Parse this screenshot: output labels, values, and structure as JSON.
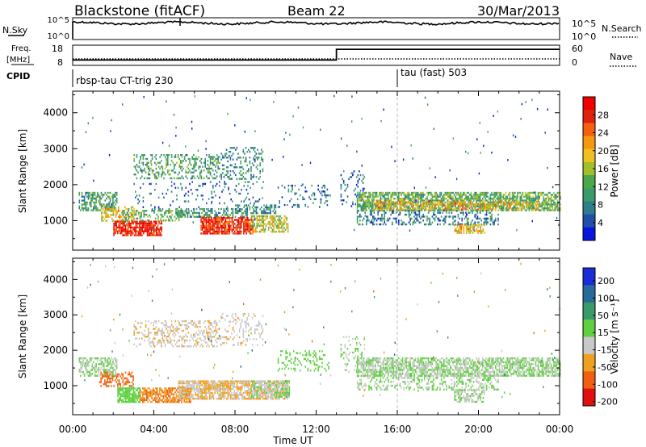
{
  "header": {
    "station": "Blackstone (fitACF)",
    "beam": "Beam 22",
    "date": "30/Mar/2013"
  },
  "nsky_panel": {
    "label": "N.Sky",
    "ticks_left": [
      "10^5",
      "10^0"
    ],
    "ticks_right": [
      "10^5",
      "10^0"
    ],
    "right_label": "N.Search"
  },
  "freq_panel": {
    "label_line1": "Freq.",
    "label_line2": "[MHz]",
    "ticks_left": [
      "18",
      "8"
    ],
    "ticks_right": [
      "60",
      "0"
    ],
    "right_label": "Nave",
    "cpid_label": "CPID",
    "freq_segments": [
      {
        "start_h": 0.0,
        "end_h": 13.0,
        "value": 10.2
      },
      {
        "start_h": 13.0,
        "end_h": 24.0,
        "value": 16.5
      }
    ]
  },
  "cpid": [
    {
      "start_h": 0.0,
      "name": "rbsp-tau CT-trig 230"
    },
    {
      "start_h": 16.0,
      "name": "tau (fast) 503"
    }
  ],
  "axes": {
    "ylabel": "Slant Range [km]",
    "yticks": [
      "1000",
      "2000",
      "3000",
      "4000"
    ],
    "xticks": [
      "00:00",
      "04:00",
      "08:00",
      "12:00",
      "16:00",
      "20:00",
      "00:00"
    ],
    "xlabel": "Time UT",
    "xlim_h": [
      0,
      24
    ],
    "ylim_km": [
      180,
      4600
    ]
  },
  "power_scale": {
    "title": "Power [dB]",
    "labels": [
      "4",
      "8",
      "12",
      "16",
      "20",
      "24",
      "28"
    ],
    "colors": [
      "#0a14e0",
      "#1f4fa8",
      "#2e7d88",
      "#3b9a6a",
      "#4aa84a",
      "#a0c02a",
      "#f0c020",
      "#f59a10",
      "#f26010",
      "#e02010",
      "#f00000"
    ]
  },
  "velocity_scale": {
    "title": "Velocity [m s⁻¹]",
    "labels": [
      "200",
      "100",
      "50",
      "15",
      "-15",
      "-50",
      "-100",
      "-200"
    ],
    "colors": [
      "#1a2cd8",
      "#2a6a9a",
      "#3a9a6a",
      "#60d040",
      "#c8c8c8",
      "#f0a020",
      "#f06010",
      "#e01010"
    ]
  },
  "chart_data": {
    "type": "heatmap",
    "title": "Blackstone (fitACF) Beam 22 30/Mar/2013",
    "xlabel": "Time UT",
    "ylabel": "Slant Range [km]",
    "xlim": [
      0,
      24
    ],
    "ylim": [
      180,
      4600
    ],
    "grid": false,
    "panels": [
      {
        "name": "Power",
        "units": "dB",
        "colorbar_range": [
          0,
          30
        ],
        "regions": [
          {
            "t0": 0.3,
            "t1": 2.2,
            "r0": 1300,
            "r1": 1800,
            "value": 10,
            "density": 0.55
          },
          {
            "t0": 1.4,
            "t1": 3.0,
            "r0": 1000,
            "r1": 1400,
            "value": 18,
            "density": 0.45
          },
          {
            "t0": 2.0,
            "t1": 4.4,
            "r0": 600,
            "r1": 1000,
            "value": 27,
            "density": 0.8
          },
          {
            "t0": 2.4,
            "t1": 5.5,
            "r0": 1000,
            "r1": 1300,
            "value": 12,
            "density": 0.4
          },
          {
            "t0": 3.0,
            "t1": 7.3,
            "r0": 2150,
            "r1": 2850,
            "value": 10,
            "density": 0.35
          },
          {
            "t0": 3.0,
            "t1": 9.4,
            "r0": 1300,
            "r1": 2100,
            "value": 6,
            "density": 0.08
          },
          {
            "t0": 5.0,
            "t1": 8.6,
            "r0": 1100,
            "r1": 1350,
            "value": 9,
            "density": 0.5
          },
          {
            "t0": 6.3,
            "t1": 8.9,
            "r0": 650,
            "r1": 1100,
            "value": 26,
            "density": 0.8
          },
          {
            "t0": 8.8,
            "t1": 10.6,
            "r0": 700,
            "r1": 1150,
            "value": 16,
            "density": 0.6
          },
          {
            "t0": 8.0,
            "t1": 10.0,
            "r0": 1200,
            "r1": 1450,
            "value": 8,
            "density": 0.35
          },
          {
            "t0": 7.3,
            "t1": 9.4,
            "r0": 2150,
            "r1": 3050,
            "value": 8,
            "density": 0.25
          },
          {
            "t0": 10.1,
            "t1": 12.6,
            "r0": 1400,
            "r1": 2000,
            "value": 6,
            "density": 0.2
          },
          {
            "t0": 13.2,
            "t1": 14.4,
            "r0": 1400,
            "r1": 2400,
            "value": 6,
            "density": 0.18
          },
          {
            "t0": 14.0,
            "t1": 24.0,
            "r0": 1300,
            "r1": 1800,
            "value": 12,
            "density": 0.7
          },
          {
            "t0": 14.8,
            "t1": 23.0,
            "r0": 1300,
            "r1": 1550,
            "value": 20,
            "density": 0.45
          },
          {
            "t0": 14.0,
            "t1": 21.0,
            "r0": 900,
            "r1": 1300,
            "value": 7,
            "density": 0.35
          },
          {
            "t0": 18.8,
            "t1": 20.3,
            "r0": 650,
            "r1": 900,
            "value": 18,
            "density": 0.6
          }
        ]
      },
      {
        "name": "Velocity",
        "units": "m s^-1",
        "colorbar_range": [
          -250,
          250
        ],
        "regions": [
          {
            "t0": 0.3,
            "t1": 2.2,
            "r0": 1300,
            "r1": 1800,
            "value": 0,
            "density": 0.6
          },
          {
            "t0": 1.3,
            "t1": 3.0,
            "r0": 1000,
            "r1": 1400,
            "value": -150,
            "density": 0.45
          },
          {
            "t0": 2.2,
            "t1": 3.3,
            "r0": 550,
            "r1": 950,
            "value": 30,
            "density": 0.8
          },
          {
            "t0": 3.3,
            "t1": 5.8,
            "r0": 550,
            "r1": 950,
            "value": -120,
            "density": 0.7
          },
          {
            "t0": 3.0,
            "t1": 7.3,
            "r0": 2100,
            "r1": 2850,
            "value": -50,
            "density": 0.3
          },
          {
            "t0": 5.2,
            "t1": 10.6,
            "r0": 650,
            "r1": 1150,
            "value": -60,
            "density": 0.75
          },
          {
            "t0": 8.8,
            "t1": 10.7,
            "r0": 700,
            "r1": 1150,
            "value": 0,
            "density": 0.55
          },
          {
            "t0": 7.3,
            "t1": 9.4,
            "r0": 2150,
            "r1": 3050,
            "value": -40,
            "density": 0.2
          },
          {
            "t0": 10.1,
            "t1": 12.6,
            "r0": 1400,
            "r1": 2000,
            "value": 30,
            "density": 0.2
          },
          {
            "t0": 13.2,
            "t1": 14.4,
            "r0": 1400,
            "r1": 2400,
            "value": 0,
            "density": 0.2
          },
          {
            "t0": 14.0,
            "t1": 24.0,
            "r0": 1300,
            "r1": 1800,
            "value": 0,
            "density": 0.7
          },
          {
            "t0": 14.0,
            "t1": 21.0,
            "r0": 900,
            "r1": 1300,
            "value": 0,
            "density": 0.35
          },
          {
            "t0": 18.8,
            "t1": 20.3,
            "r0": 550,
            "r1": 900,
            "value": 0,
            "density": 0.6
          }
        ]
      }
    ]
  }
}
